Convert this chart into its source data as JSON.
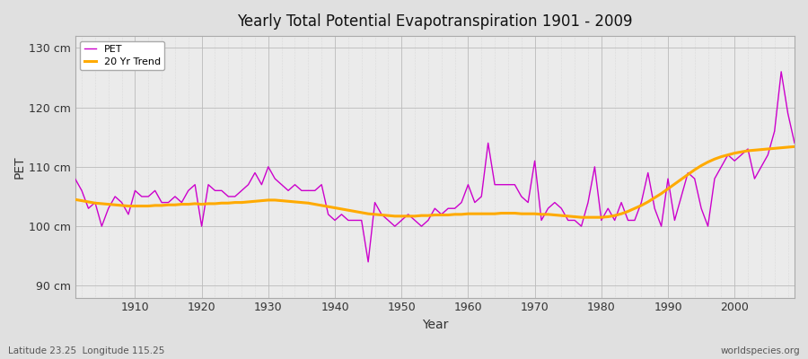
{
  "title": "Yearly Total Potential Evapotranspiration 1901 - 2009",
  "xlabel": "Year",
  "ylabel": "PET",
  "footer_left": "Latitude 23.25  Longitude 115.25",
  "footer_right": "worldspecies.org",
  "pet_color": "#cc00cc",
  "trend_color": "#ffaa00",
  "bg_color": "#e0e0e0",
  "plot_bg_color": "#ebebeb",
  "ylim": [
    88,
    132
  ],
  "yticks": [
    90,
    100,
    110,
    120,
    130
  ],
  "xlim": [
    1901,
    2009
  ],
  "years": [
    1901,
    1902,
    1903,
    1904,
    1905,
    1906,
    1907,
    1908,
    1909,
    1910,
    1911,
    1912,
    1913,
    1914,
    1915,
    1916,
    1917,
    1918,
    1919,
    1920,
    1921,
    1922,
    1923,
    1924,
    1925,
    1926,
    1927,
    1928,
    1929,
    1930,
    1931,
    1932,
    1933,
    1934,
    1935,
    1936,
    1937,
    1938,
    1939,
    1940,
    1941,
    1942,
    1943,
    1944,
    1945,
    1946,
    1947,
    1948,
    1949,
    1950,
    1951,
    1952,
    1953,
    1954,
    1955,
    1956,
    1957,
    1958,
    1959,
    1960,
    1961,
    1962,
    1963,
    1964,
    1965,
    1966,
    1967,
    1968,
    1969,
    1970,
    1971,
    1972,
    1973,
    1974,
    1975,
    1976,
    1977,
    1978,
    1979,
    1980,
    1981,
    1982,
    1983,
    1984,
    1985,
    1986,
    1987,
    1988,
    1989,
    1990,
    1991,
    1992,
    1993,
    1994,
    1995,
    1996,
    1997,
    1998,
    1999,
    2000,
    2001,
    2002,
    2003,
    2004,
    2005,
    2006,
    2007,
    2008,
    2009
  ],
  "pet": [
    108,
    106,
    103,
    104,
    100,
    103,
    105,
    104,
    102,
    106,
    105,
    105,
    106,
    104,
    104,
    105,
    104,
    106,
    107,
    100,
    107,
    106,
    106,
    105,
    105,
    106,
    107,
    109,
    107,
    110,
    108,
    107,
    106,
    107,
    106,
    106,
    106,
    107,
    102,
    101,
    102,
    101,
    101,
    101,
    94,
    104,
    102,
    101,
    100,
    101,
    102,
    101,
    100,
    101,
    103,
    102,
    103,
    103,
    104,
    107,
    104,
    105,
    114,
    107,
    107,
    107,
    107,
    105,
    104,
    111,
    101,
    103,
    104,
    103,
    101,
    101,
    100,
    104,
    110,
    101,
    103,
    101,
    104,
    101,
    101,
    104,
    109,
    103,
    100,
    108,
    101,
    105,
    109,
    108,
    103,
    100,
    108,
    110,
    112,
    111,
    112,
    113,
    108,
    110,
    112,
    116,
    126,
    119,
    114
  ],
  "trend": [
    104.5,
    104.3,
    104.1,
    103.9,
    103.8,
    103.7,
    103.6,
    103.5,
    103.4,
    103.4,
    103.4,
    103.4,
    103.5,
    103.5,
    103.6,
    103.6,
    103.7,
    103.7,
    103.8,
    103.7,
    103.8,
    103.8,
    103.9,
    103.9,
    104.0,
    104.0,
    104.1,
    104.2,
    104.3,
    104.4,
    104.4,
    104.3,
    104.2,
    104.1,
    104.0,
    103.9,
    103.7,
    103.5,
    103.3,
    103.1,
    102.9,
    102.7,
    102.5,
    102.3,
    102.1,
    102.0,
    101.9,
    101.8,
    101.7,
    101.7,
    101.7,
    101.7,
    101.8,
    101.8,
    101.9,
    101.9,
    101.9,
    102.0,
    102.0,
    102.1,
    102.1,
    102.1,
    102.1,
    102.1,
    102.2,
    102.2,
    102.2,
    102.1,
    102.1,
    102.1,
    102.0,
    102.0,
    101.9,
    101.8,
    101.7,
    101.6,
    101.5,
    101.5,
    101.5,
    101.5,
    101.6,
    101.8,
    102.1,
    102.5,
    103.0,
    103.5,
    104.1,
    104.8,
    105.5,
    106.3,
    107.1,
    107.9,
    108.7,
    109.5,
    110.2,
    110.8,
    111.3,
    111.7,
    112.0,
    112.3,
    112.5,
    112.7,
    112.8,
    112.9,
    113.0,
    113.1,
    113.2,
    113.3,
    113.4
  ]
}
